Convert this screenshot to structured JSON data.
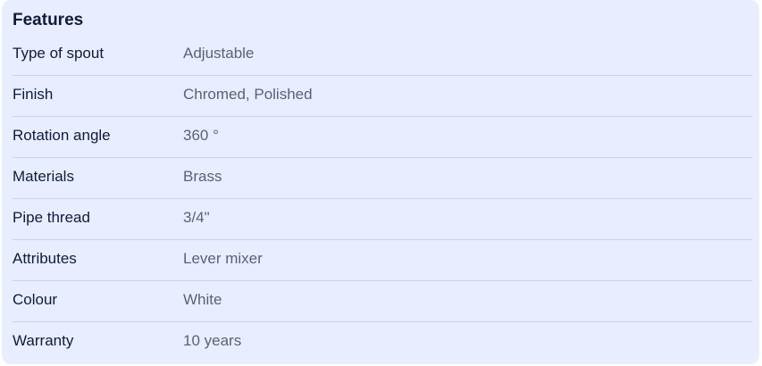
{
  "features": {
    "title": "Features",
    "rows": [
      {
        "label": "Type of spout",
        "value": "Adjustable"
      },
      {
        "label": "Finish",
        "value": "Chromed, Polished"
      },
      {
        "label": "Rotation angle",
        "value": "360 °"
      },
      {
        "label": "Materials",
        "value": "Brass"
      },
      {
        "label": "Pipe thread",
        "value": "3/4\""
      },
      {
        "label": "Attributes",
        "value": "Lever mixer"
      },
      {
        "label": "Colour",
        "value": "White"
      },
      {
        "label": "Warranty",
        "value": "10 years"
      }
    ]
  },
  "colors": {
    "card_background": "#e8eeff",
    "label_text": "#0f1b3d",
    "value_text": "#5b6272",
    "divider": "#ccd3e3"
  }
}
